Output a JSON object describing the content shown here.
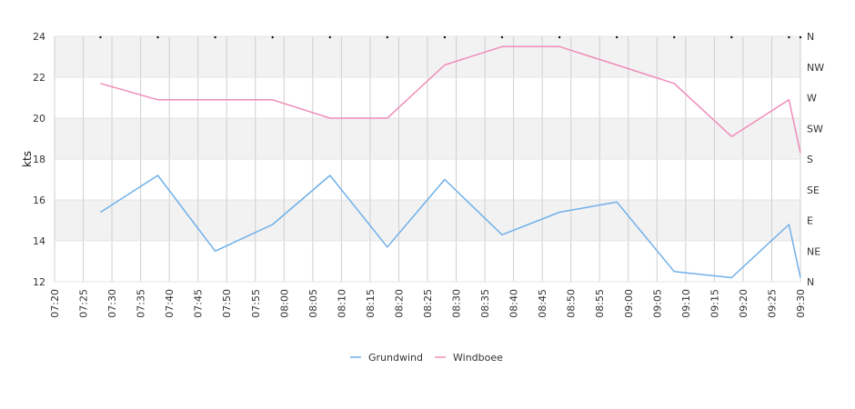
{
  "chart_data": {
    "type": "line",
    "ylabel": "kts",
    "ylim": [
      12,
      24
    ],
    "yticks": [
      12,
      14,
      16,
      18,
      20,
      22,
      24
    ],
    "direction_ticks": [
      "N",
      "NE",
      "E",
      "SE",
      "S",
      "SW",
      "W",
      "NW",
      "N"
    ],
    "x_range": [
      "07:20",
      "09:30"
    ],
    "xticks": [
      "07:20",
      "07:25",
      "07:30",
      "07:35",
      "07:40",
      "07:45",
      "07:50",
      "07:55",
      "08:00",
      "08:05",
      "08:10",
      "08:15",
      "08:20",
      "08:25",
      "08:30",
      "08:35",
      "08:40",
      "08:45",
      "08:50",
      "08:55",
      "09:00",
      "09:05",
      "09:10",
      "09:15",
      "09:20",
      "09:25",
      "09:30"
    ],
    "grid": true,
    "legend_position": "bottom-center",
    "series": [
      {
        "name": "Grundwind",
        "color": "#6fb0ea",
        "points": [
          {
            "x": "07:28",
            "y": 15.4
          },
          {
            "x": "07:38",
            "y": 17.2
          },
          {
            "x": "07:48",
            "y": 13.5
          },
          {
            "x": "07:58",
            "y": 14.8
          },
          {
            "x": "08:08",
            "y": 17.2
          },
          {
            "x": "08:18",
            "y": 13.7
          },
          {
            "x": "08:28",
            "y": 17.0
          },
          {
            "x": "08:38",
            "y": 14.3
          },
          {
            "x": "08:48",
            "y": 15.4
          },
          {
            "x": "08:58",
            "y": 15.9
          },
          {
            "x": "09:08",
            "y": 12.5
          },
          {
            "x": "09:18",
            "y": 12.2
          },
          {
            "x": "09:28",
            "y": 14.8
          },
          {
            "x": "09:30",
            "y": 12.2
          }
        ]
      },
      {
        "name": "Windboee",
        "color": "#f08cb8",
        "points": [
          {
            "x": "07:28",
            "y": 21.7
          },
          {
            "x": "07:38",
            "y": 20.9
          },
          {
            "x": "07:48",
            "y": 20.9
          },
          {
            "x": "07:58",
            "y": 20.9
          },
          {
            "x": "08:08",
            "y": 20.0
          },
          {
            "x": "08:18",
            "y": 20.0
          },
          {
            "x": "08:28",
            "y": 22.6
          },
          {
            "x": "08:38",
            "y": 23.5
          },
          {
            "x": "08:48",
            "y": 23.5
          },
          {
            "x": "08:58",
            "y": 22.6
          },
          {
            "x": "09:08",
            "y": 21.7
          },
          {
            "x": "09:18",
            "y": 19.1
          },
          {
            "x": "09:28",
            "y": 20.9
          },
          {
            "x": "09:30",
            "y": 18.3
          }
        ]
      }
    ],
    "direction_markers": [
      {
        "x": "07:28",
        "dir": "N"
      },
      {
        "x": "07:38",
        "dir": "N"
      },
      {
        "x": "07:48",
        "dir": "N"
      },
      {
        "x": "07:58",
        "dir": "N"
      },
      {
        "x": "08:08",
        "dir": "N"
      },
      {
        "x": "08:18",
        "dir": "N"
      },
      {
        "x": "08:28",
        "dir": "N"
      },
      {
        "x": "08:38",
        "dir": "N"
      },
      {
        "x": "08:48",
        "dir": "N"
      },
      {
        "x": "08:58",
        "dir": "N"
      },
      {
        "x": "09:08",
        "dir": "N"
      },
      {
        "x": "09:18",
        "dir": "N"
      },
      {
        "x": "09:28",
        "dir": "N"
      },
      {
        "x": "09:30",
        "dir": "N"
      }
    ]
  }
}
